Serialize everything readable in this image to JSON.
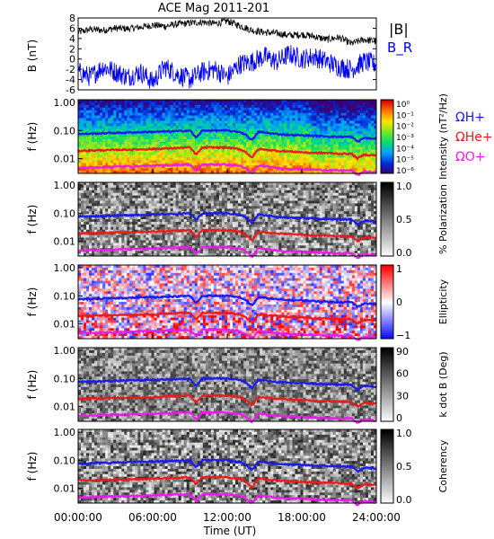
{
  "chart_data": [
    {
      "type": "line",
      "title": "ACE Mag 2011-201",
      "ylabel": "B (nT)",
      "ylim": [
        -6,
        8
      ],
      "yticks": [
        8,
        6,
        4,
        2,
        0,
        -2,
        -4,
        -6
      ],
      "xlim": [
        0,
        24
      ],
      "legend_placement": "right",
      "series": [
        {
          "name": "|B|",
          "color": "#000000",
          "values": [
            5.2,
            5.8,
            5.6,
            6.0,
            5.9,
            6.2,
            6.6,
            6.4,
            6.8,
            7.0,
            7.2,
            6.9,
            7.4,
            6.5,
            5.6,
            5.2,
            5.0,
            4.6,
            4.8,
            4.4,
            3.8,
            4.2,
            3.0,
            3.8,
            3.4
          ]
        },
        {
          "name": "B_R",
          "color": "#0000ee",
          "values": [
            -2.5,
            -3.5,
            -1.5,
            -2.5,
            -3.5,
            -2.5,
            -4.5,
            -1.5,
            -3.0,
            -4.0,
            -2.5,
            -2.0,
            -3.5,
            -1.0,
            -0.5,
            0.5,
            -0.5,
            1.0,
            0.0,
            0.5,
            -0.5,
            -1.5,
            -2.0,
            -0.5,
            -1.0
          ]
        }
      ]
    },
    {
      "type": "heatmap",
      "ylabel": "f (Hz)",
      "yscale": "log",
      "ylim": [
        0.003,
        1.0
      ],
      "yticks": [
        "1.00",
        "0.10",
        "0.01"
      ],
      "colorbar": {
        "label": "Intensity (nT²/Hz)",
        "ticks": [
          "10⁰",
          "10⁻¹",
          "10⁻²",
          "10⁻³",
          "10⁻⁴",
          "10⁻⁵",
          "10⁻⁶"
        ],
        "colormap": "rainbow"
      },
      "legend": [
        "ΩH+",
        "ΩHe+",
        "ΩO+"
      ]
    },
    {
      "type": "heatmap",
      "ylabel": "f (Hz)",
      "yscale": "log",
      "yticks": [
        "1.00",
        "0.10",
        "0.01"
      ],
      "colorbar": {
        "label": "% Polarization",
        "ticks": [
          "1.0",
          "0.5",
          "0.0"
        ],
        "colormap": "gray"
      }
    },
    {
      "type": "heatmap",
      "ylabel": "f (Hz)",
      "yscale": "log",
      "yticks": [
        "1.00",
        "0.10",
        "0.01"
      ],
      "colorbar": {
        "label": "Ellipticity",
        "ticks": [
          "1",
          "0",
          "−1"
        ],
        "colormap": "blue-white-red"
      }
    },
    {
      "type": "heatmap",
      "ylabel": "f (Hz)",
      "yscale": "log",
      "yticks": [
        "1.00",
        "0.10",
        "0.01"
      ],
      "colorbar": {
        "label": "k dot B (Deg)",
        "ticks": [
          "90",
          "60",
          "30",
          "0"
        ],
        "colormap": "gray"
      }
    },
    {
      "type": "heatmap",
      "ylabel": "f (Hz)",
      "yscale": "log",
      "yticks": [
        "1.00",
        "0.10",
        "0.01"
      ],
      "xlabel": "Time (UT)",
      "xticks": [
        "00:00:00",
        "06:00:00",
        "12:00:00",
        "18:00:00",
        "24:00:00"
      ],
      "colorbar": {
        "label": "Coherency",
        "ticks": [
          "1.0",
          "0.5",
          "0.0"
        ],
        "colormap": "gray"
      }
    }
  ],
  "gyrofrequency_lines": {
    "hours": [
      0,
      2,
      4,
      6,
      8,
      9,
      9.5,
      10,
      11,
      12,
      12.5,
      13,
      13.5,
      14,
      14.5,
      15,
      16,
      17,
      18,
      19,
      20,
      21,
      22,
      22.5,
      23,
      24
    ],
    "H": {
      "label": "ΩH+",
      "color": "#1a1aee",
      "values_hz": [
        0.075,
        0.08,
        0.085,
        0.09,
        0.095,
        0.1,
        0.055,
        0.1,
        0.1,
        0.1,
        0.092,
        0.09,
        0.07,
        0.045,
        0.09,
        0.085,
        0.075,
        0.07,
        0.068,
        0.065,
        0.062,
        0.06,
        0.06,
        0.04,
        0.055,
        0.05
      ]
    },
    "He": {
      "label": "ΩHe+",
      "color": "#ee1a1a",
      "values_hz": [
        0.019,
        0.02,
        0.021,
        0.022,
        0.024,
        0.025,
        0.014,
        0.025,
        0.025,
        0.025,
        0.023,
        0.022,
        0.017,
        0.011,
        0.022,
        0.021,
        0.019,
        0.018,
        0.017,
        0.016,
        0.016,
        0.015,
        0.015,
        0.01,
        0.014,
        0.013
      ]
    },
    "O": {
      "label": "ΩO+",
      "color": "#ee1aee",
      "values_hz": [
        0.0047,
        0.005,
        0.0053,
        0.0056,
        0.006,
        0.0062,
        0.0035,
        0.0062,
        0.0062,
        0.0062,
        0.0058,
        0.0056,
        0.0044,
        0.0029,
        0.0056,
        0.0053,
        0.0047,
        0.0044,
        0.0043,
        0.0041,
        0.0039,
        0.0038,
        0.0038,
        0.0026,
        0.0035,
        0.0032
      ]
    }
  },
  "colors": {
    "h_plus": "#1a1aee",
    "he_plus": "#ee1a1a",
    "o_plus": "#ee1aee",
    "b_total": "#000000",
    "b_radial": "#0000ee"
  }
}
